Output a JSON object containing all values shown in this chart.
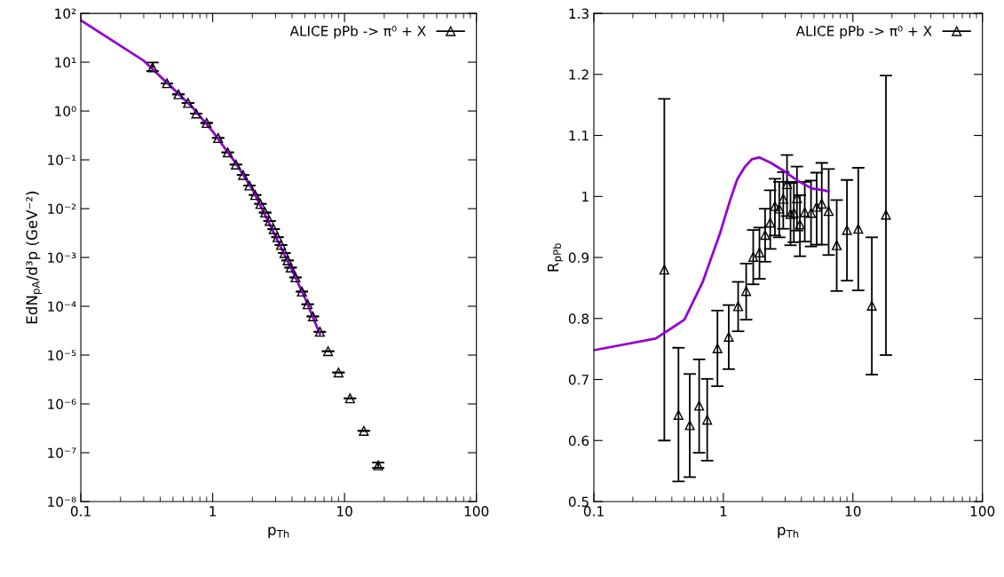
{
  "chart_data": [
    {
      "type": "scatter",
      "xlabel": "p$_{Th}$",
      "ylabel": "EdN$_{pA}$/d³p (GeV⁻²)",
      "log": "xy",
      "legend": "top right",
      "grid": false,
      "xlim": [
        0.1,
        100
      ],
      "xticks": [
        0.1,
        1,
        10,
        100
      ],
      "ylim": [
        1e-08,
        100
      ],
      "yticks": [
        {
          "value": 1e-08,
          "label": "10⁻⁸"
        },
        {
          "value": 1e-07,
          "label": "10⁻⁷"
        },
        {
          "value": 1e-06,
          "label": "10⁻⁶"
        },
        {
          "value": 1e-05,
          "label": "10⁻⁵"
        },
        {
          "value": 0.0001,
          "label": "10⁻⁴"
        },
        {
          "value": 0.001,
          "label": "10⁻³"
        },
        {
          "value": 0.01,
          "label": "10⁻²"
        },
        {
          "value": 0.1,
          "label": "10⁻¹"
        },
        {
          "value": 1,
          "label": "10⁰"
        },
        {
          "value": 10,
          "label": "10¹"
        },
        {
          "value": 100,
          "label": "10²"
        }
      ],
      "series": [
        {
          "type": "scatter",
          "name": "ALICE pPb -> π⁰ + X",
          "color": "#000000",
          "marker": "triangle",
          "x": [
            0.35,
            0.45,
            0.55,
            0.65,
            0.75,
            0.9,
            1.1,
            1.3,
            1.5,
            1.7,
            1.9,
            2.1,
            2.3,
            2.5,
            2.7,
            2.9,
            3.1,
            3.3,
            3.5,
            3.7,
            3.9,
            4.25,
            4.75,
            5.25,
            5.75,
            6.5,
            7.5,
            9,
            11,
            14,
            18
          ],
          "values": [
            7.8,
            3.7,
            2.2,
            1.46,
            0.89,
            0.57,
            0.28,
            0.142,
            0.08,
            0.049,
            0.0297,
            0.019,
            0.0125,
            0.0083,
            0.0056,
            0.0038,
            0.0026,
            0.0018,
            0.00123,
            0.00087,
            0.00062,
            0.00039,
            0.0002,
            0.00011,
            6.2e-05,
            3e-05,
            1.2e-05,
            4.4e-06,
            1.3e-06,
            2.8e-07,
            5.5e-08
          ],
          "errors": [
            [
              6.6,
              9.9
            ],
            null,
            null,
            null,
            null,
            null,
            null,
            null,
            null,
            null,
            null,
            null,
            null,
            null,
            null,
            null,
            null,
            null,
            null,
            null,
            null,
            null,
            null,
            null,
            null,
            null,
            null,
            null,
            null,
            null,
            [
              4.9e-08,
              6.3e-08
            ]
          ]
        },
        {
          "type": "line",
          "color": "#9400d3",
          "line_style": "solid",
          "x": [
            0.1,
            0.3,
            0.5,
            0.7,
            1.0,
            1.5,
            2,
            3,
            4,
            5,
            6.5
          ],
          "values": [
            72,
            10.7,
            2.9,
            1.2,
            0.38,
            0.085,
            0.025,
            0.0027,
            0.00055,
            0.00015,
            2.7e-05
          ]
        }
      ]
    },
    {
      "type": "scatter",
      "xlabel": "p$_{Th}$",
      "ylabel": "R$_{pPb}$",
      "log": "x",
      "legend": "top right",
      "grid": false,
      "xlim": [
        0.1,
        100
      ],
      "xticks": [
        0.1,
        1,
        10,
        100
      ],
      "ylim": [
        0.5,
        1.3
      ],
      "yticks": [
        0.5,
        0.6,
        0.7,
        0.8,
        0.9,
        1,
        1.1,
        1.2,
        1.3
      ],
      "series": [
        {
          "type": "scatter",
          "name": "ALICE pPb -> π⁰ + X",
          "color": "#000000",
          "marker": "triangle",
          "x": [
            0.35,
            0.45,
            0.55,
            0.65,
            0.75,
            0.9,
            1.1,
            1.3,
            1.5,
            1.7,
            1.9,
            2.1,
            2.3,
            2.5,
            2.7,
            2.9,
            3.1,
            3.3,
            3.5,
            3.7,
            3.9,
            4.25,
            4.75,
            5.25,
            5.75,
            6.5,
            7.5,
            9,
            11,
            14,
            18
          ],
          "values": [
            0.88,
            0.642,
            0.625,
            0.657,
            0.634,
            0.751,
            0.77,
            0.82,
            0.845,
            0.901,
            0.908,
            0.937,
            0.957,
            0.984,
            0.98,
            0.996,
            1.02,
            0.971,
            0.973,
            0.997,
            0.954,
            0.974,
            0.973,
            0.983,
            0.988,
            0.976,
            0.92,
            0.945,
            0.947,
            0.821,
            0.97
          ],
          "errors": [
            [
              0.6,
              1.16
            ],
            [
              0.533,
              0.752
            ],
            [
              0.54,
              0.709
            ],
            [
              0.58,
              0.733
            ],
            [
              0.567,
              0.701
            ],
            [
              0.689,
              0.813
            ],
            [
              0.717,
              0.822
            ],
            [
              0.779,
              0.86
            ],
            [
              0.798,
              0.89
            ],
            [
              0.856,
              0.945
            ],
            [
              0.865,
              0.949
            ],
            [
              0.893,
              0.98
            ],
            [
              0.914,
              1.01
            ],
            [
              0.936,
              1.029
            ],
            [
              0.933,
              1.024
            ],
            [
              0.947,
              1.04
            ],
            [
              0.968,
              1.068
            ],
            [
              0.92,
              1.022
            ],
            [
              0.925,
              1.024
            ],
            [
              0.944,
              1.049
            ],
            [
              0.902,
              1.002
            ],
            [
              0.926,
              1.024
            ],
            [
              0.918,
              1.026
            ],
            [
              0.921,
              1.039
            ],
            [
              0.921,
              1.055
            ],
            [
              0.904,
              1.045
            ],
            [
              0.845,
              0.994
            ],
            [
              0.862,
              1.027
            ],
            [
              0.846,
              1.047
            ],
            [
              0.708,
              0.933
            ],
            [
              0.74,
              1.198
            ]
          ]
        },
        {
          "type": "line",
          "color": "#9400d3",
          "line_style": "solid",
          "x": [
            0.1,
            0.3,
            0.5,
            0.69,
            0.94,
            1.12,
            1.28,
            1.46,
            1.66,
            1.89,
            2.33,
            2.87,
            3.73,
            4.84,
            6.0,
            6.5
          ],
          "values": [
            0.748,
            0.767,
            0.798,
            0.859,
            0.939,
            0.992,
            1.028,
            1.048,
            1.061,
            1.064,
            1.055,
            1.043,
            1.026,
            1.013,
            1.01,
            1.008
          ]
        }
      ]
    }
  ]
}
